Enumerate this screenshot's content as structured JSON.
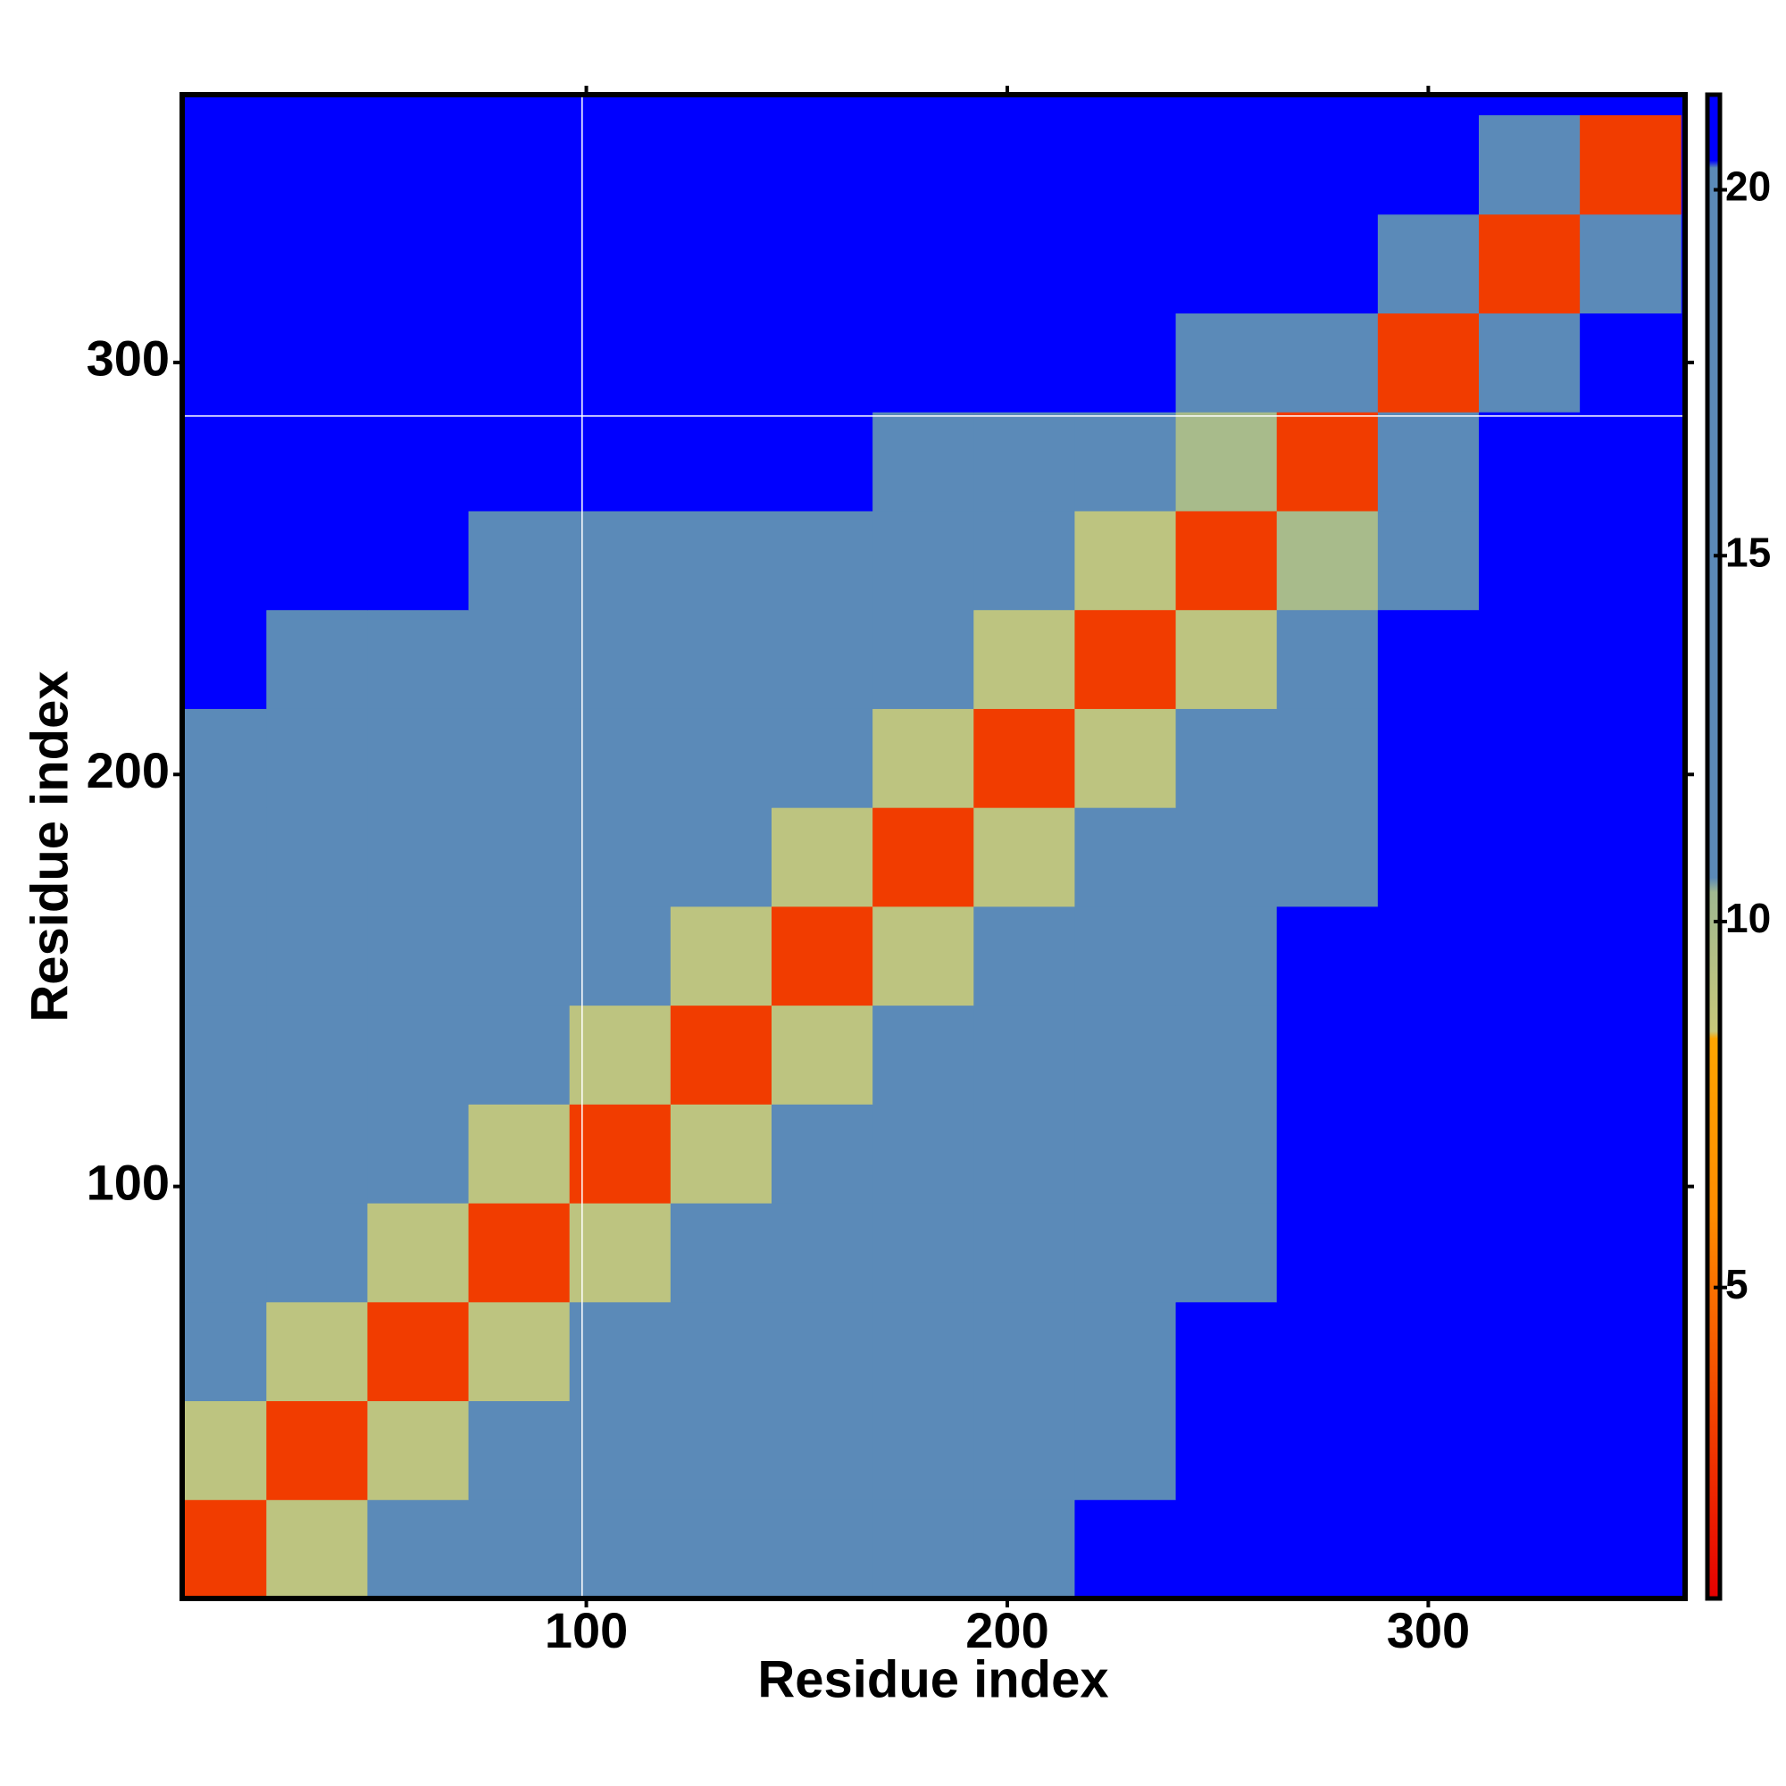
{
  "chart_data": {
    "type": "heatmap",
    "x_label": "Residue index",
    "y_label": "Residue index",
    "xlim": [
      4,
      361
    ],
    "ylim": [
      0,
      365
    ],
    "xticks": [
      100,
      200,
      300
    ],
    "yticks": [
      100,
      200,
      300
    ],
    "bins": [
      0,
      24,
      48,
      72,
      96,
      120,
      144,
      168,
      192,
      216,
      240,
      264,
      288,
      312,
      336,
      360
    ],
    "z": [
      [
        3,
        9,
        12,
        14,
        13,
        14,
        15,
        16,
        19,
        21,
        21,
        21,
        21,
        21,
        21
      ],
      [
        9,
        3,
        9,
        12,
        14,
        13,
        14,
        16,
        18,
        20,
        21,
        21,
        21,
        21,
        21
      ],
      [
        12,
        9,
        3,
        9,
        12,
        13,
        12,
        14,
        16,
        18,
        21,
        21,
        21,
        21,
        21
      ],
      [
        14,
        12,
        9,
        3,
        9,
        12,
        13,
        12,
        14,
        16,
        19,
        21,
        21,
        21,
        21
      ],
      [
        13,
        14,
        12,
        9,
        3,
        9,
        11,
        13,
        14,
        15,
        19,
        21,
        21,
        21,
        21
      ],
      [
        14,
        13,
        13,
        12,
        9,
        3,
        9,
        12,
        13,
        15,
        18,
        21,
        21,
        21,
        21
      ],
      [
        15,
        14,
        12,
        13,
        11,
        9,
        3,
        9,
        12,
        14,
        16,
        21,
        21,
        21,
        21
      ],
      [
        16,
        16,
        14,
        12,
        13,
        12,
        9,
        3,
        9,
        12,
        14,
        20,
        21,
        21,
        21
      ],
      [
        19,
        18,
        16,
        14,
        14,
        13,
        12,
        9,
        3,
        9,
        12,
        18,
        21,
        21,
        21
      ],
      [
        21,
        20,
        18,
        16,
        15,
        15,
        14,
        12,
        9,
        3,
        9,
        15,
        21,
        21,
        21
      ],
      [
        21,
        21,
        21,
        19,
        19,
        18,
        16,
        14,
        12,
        9,
        3,
        10,
        19,
        21,
        21
      ],
      [
        21,
        21,
        21,
        21,
        21,
        21,
        21,
        20,
        18,
        15,
        10,
        3,
        14,
        21,
        21
      ],
      [
        21,
        21,
        21,
        21,
        21,
        21,
        21,
        21,
        21,
        21,
        19,
        14,
        3,
        14,
        21
      ],
      [
        21,
        21,
        21,
        21,
        21,
        21,
        21,
        21,
        21,
        21,
        21,
        21,
        14,
        3,
        14
      ],
      [
        21,
        21,
        21,
        21,
        21,
        21,
        21,
        21,
        21,
        21,
        21,
        21,
        21,
        14,
        3
      ]
    ],
    "crosshair": {
      "x": 99,
      "y": 287
    },
    "colorbar": {
      "lim": [
        0.75,
        21.3
      ],
      "ticks": [
        5,
        10,
        15,
        20
      ]
    },
    "colorscale": [
      {
        "value": 0.75,
        "color": "#e60000"
      },
      {
        "value": 6,
        "color": "#ff8c00"
      },
      {
        "value": 8.4,
        "color": "#ffa500"
      },
      {
        "value": 8.5,
        "color": "#c8c87a"
      },
      {
        "value": 10.4,
        "color": "#a0b890"
      },
      {
        "value": 10.6,
        "color": "#5b8ab8"
      },
      {
        "value": 20.3,
        "color": "#5b8ab8"
      },
      {
        "value": 20.4,
        "color": "#0000ff"
      },
      {
        "value": 21.3,
        "color": "#0000ff"
      }
    ]
  }
}
